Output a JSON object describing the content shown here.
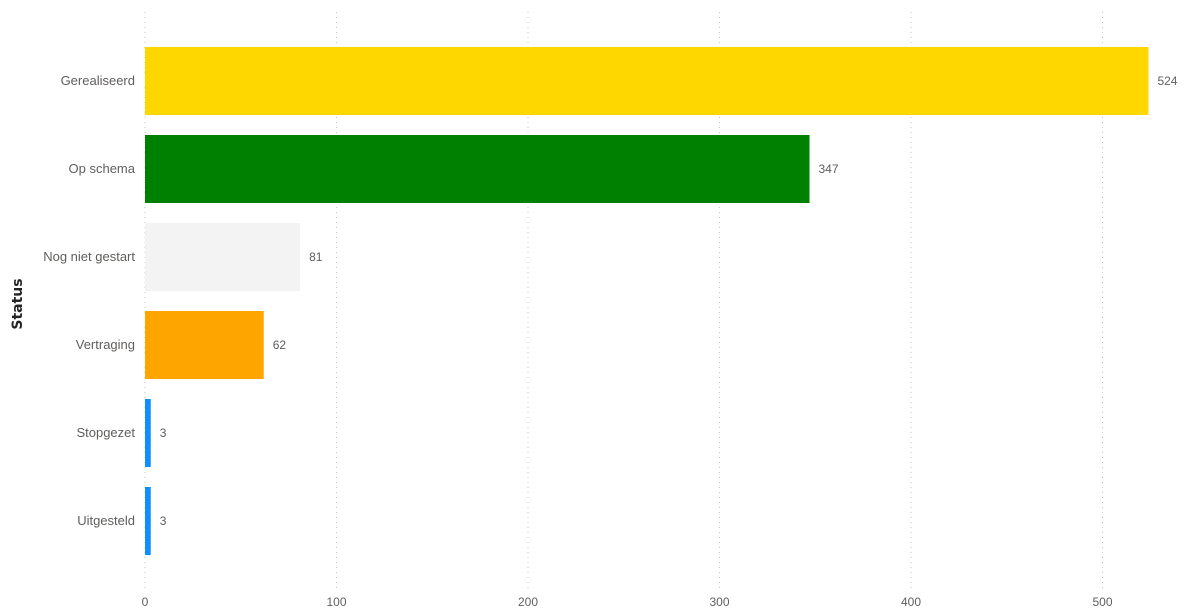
{
  "chart_data": {
    "type": "bar",
    "orientation": "horizontal",
    "title": "",
    "xlabel": "",
    "ylabel": "Status",
    "categories": [
      "Gerealiseerd",
      "Op schema",
      "Nog niet gestart",
      "Vertraging",
      "Stopgezet",
      "Uitgesteld"
    ],
    "values": [
      524,
      347,
      81,
      62,
      3,
      3
    ],
    "value_labels": [
      "524",
      "347",
      "81",
      "62",
      "3",
      "3"
    ],
    "colors": [
      "#FFD700",
      "#008000",
      "#F3F3F3",
      "#FFA500",
      "#118DFF",
      "#118DFF"
    ],
    "xlim": [
      0,
      545
    ],
    "xticks": [
      0,
      100,
      200,
      300,
      400,
      500
    ],
    "xtick_labels": [
      "0",
      "100",
      "200",
      "300",
      "400",
      "500"
    ],
    "grid": "vertical dotted",
    "legend": "none"
  }
}
